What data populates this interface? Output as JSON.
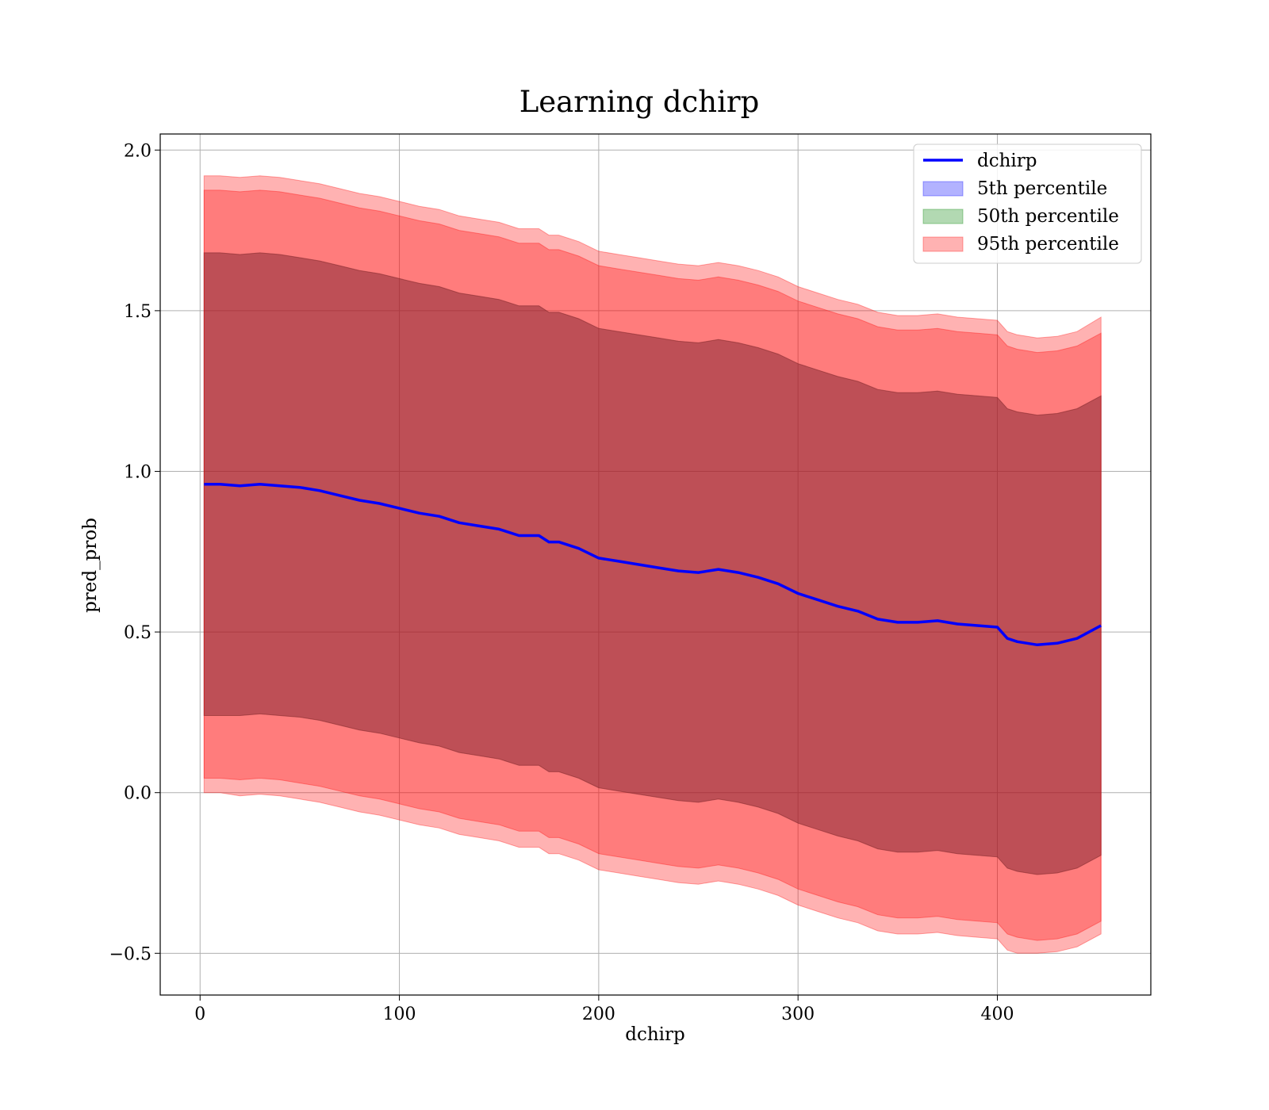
{
  "chart_data": {
    "type": "line",
    "title": "Learning dchirp",
    "xlabel": "dchirp",
    "ylabel": "pred_prob",
    "xlim": [
      -20,
      477
    ],
    "ylim": [
      -0.63,
      2.05
    ],
    "xticks": [
      0,
      100,
      200,
      300,
      400
    ],
    "xtick_labels": [
      "0",
      "100",
      "200",
      "300",
      "400"
    ],
    "yticks": [
      -0.5,
      0.0,
      0.5,
      1.0,
      1.5,
      2.0
    ],
    "ytick_labels": [
      "−0.5",
      "0.0",
      "0.5",
      "1.0",
      "1.5",
      "2.0"
    ],
    "grid": true,
    "legend_position": "top-right",
    "x": [
      2,
      10,
      20,
      30,
      40,
      50,
      60,
      70,
      80,
      90,
      100,
      110,
      120,
      130,
      140,
      150,
      160,
      170,
      175,
      180,
      190,
      200,
      210,
      220,
      230,
      240,
      250,
      260,
      270,
      280,
      290,
      300,
      310,
      320,
      330,
      340,
      350,
      360,
      370,
      380,
      390,
      400,
      405,
      410,
      415,
      420,
      430,
      440,
      452
    ],
    "series": [
      {
        "name": "dchirp",
        "kind": "line",
        "color": "#0000ff",
        "values": [
          0.96,
          0.96,
          0.955,
          0.96,
          0.955,
          0.95,
          0.94,
          0.925,
          0.91,
          0.9,
          0.885,
          0.87,
          0.86,
          0.84,
          0.83,
          0.82,
          0.8,
          0.8,
          0.78,
          0.78,
          0.76,
          0.73,
          0.72,
          0.71,
          0.7,
          0.69,
          0.685,
          0.695,
          0.685,
          0.67,
          0.65,
          0.62,
          0.6,
          0.58,
          0.565,
          0.54,
          0.53,
          0.53,
          0.535,
          0.525,
          0.52,
          0.515,
          0.48,
          0.47,
          0.465,
          0.46,
          0.465,
          0.48,
          0.52
        ]
      },
      {
        "name": "5th percentile",
        "kind": "band",
        "color": "#0000ff",
        "opacity": 0.3,
        "lower": [
          0.24,
          0.24,
          0.24,
          0.245,
          0.24,
          0.235,
          0.225,
          0.21,
          0.195,
          0.185,
          0.17,
          0.155,
          0.145,
          0.125,
          0.115,
          0.105,
          0.085,
          0.085,
          0.065,
          0.065,
          0.045,
          0.015,
          0.005,
          -0.005,
          -0.015,
          -0.025,
          -0.03,
          -0.02,
          -0.03,
          -0.045,
          -0.065,
          -0.095,
          -0.115,
          -0.135,
          -0.15,
          -0.175,
          -0.185,
          -0.185,
          -0.18,
          -0.19,
          -0.195,
          -0.2,
          -0.235,
          -0.245,
          -0.25,
          -0.255,
          -0.25,
          -0.235,
          -0.195
        ],
        "upper": [
          1.68,
          1.68,
          1.675,
          1.68,
          1.675,
          1.665,
          1.655,
          1.64,
          1.625,
          1.615,
          1.6,
          1.585,
          1.575,
          1.555,
          1.545,
          1.535,
          1.515,
          1.515,
          1.495,
          1.495,
          1.475,
          1.445,
          1.435,
          1.425,
          1.415,
          1.405,
          1.4,
          1.41,
          1.4,
          1.385,
          1.365,
          1.335,
          1.315,
          1.295,
          1.28,
          1.255,
          1.245,
          1.245,
          1.25,
          1.24,
          1.235,
          1.23,
          1.195,
          1.185,
          1.18,
          1.175,
          1.18,
          1.195,
          1.235
        ]
      },
      {
        "name": "50th percentile",
        "kind": "band",
        "color": "#008000",
        "opacity": 0.3,
        "lower": [
          0.24,
          0.24,
          0.24,
          0.245,
          0.24,
          0.235,
          0.225,
          0.21,
          0.195,
          0.185,
          0.17,
          0.155,
          0.145,
          0.125,
          0.115,
          0.105,
          0.085,
          0.085,
          0.065,
          0.065,
          0.045,
          0.015,
          0.005,
          -0.005,
          -0.015,
          -0.025,
          -0.03,
          -0.02,
          -0.03,
          -0.045,
          -0.065,
          -0.095,
          -0.115,
          -0.135,
          -0.15,
          -0.175,
          -0.185,
          -0.185,
          -0.18,
          -0.19,
          -0.195,
          -0.2,
          -0.235,
          -0.245,
          -0.25,
          -0.255,
          -0.25,
          -0.235,
          -0.195
        ],
        "upper": [
          1.68,
          1.68,
          1.675,
          1.68,
          1.675,
          1.665,
          1.655,
          1.64,
          1.625,
          1.615,
          1.6,
          1.585,
          1.575,
          1.555,
          1.545,
          1.535,
          1.515,
          1.515,
          1.495,
          1.495,
          1.475,
          1.445,
          1.435,
          1.425,
          1.415,
          1.405,
          1.4,
          1.41,
          1.4,
          1.385,
          1.365,
          1.335,
          1.315,
          1.295,
          1.28,
          1.255,
          1.245,
          1.245,
          1.25,
          1.24,
          1.235,
          1.23,
          1.195,
          1.185,
          1.18,
          1.175,
          1.18,
          1.195,
          1.235
        ]
      },
      {
        "name": "95th percentile",
        "kind": "band",
        "color": "#ff0000",
        "opacity": 0.3,
        "lower": [
          0.045,
          0.045,
          0.04,
          0.045,
          0.04,
          0.03,
          0.02,
          0.005,
          -0.01,
          -0.02,
          -0.035,
          -0.05,
          -0.06,
          -0.08,
          -0.09,
          -0.1,
          -0.12,
          -0.12,
          -0.14,
          -0.14,
          -0.16,
          -0.19,
          -0.2,
          -0.21,
          -0.22,
          -0.23,
          -0.235,
          -0.225,
          -0.235,
          -0.25,
          -0.27,
          -0.3,
          -0.32,
          -0.34,
          -0.355,
          -0.38,
          -0.39,
          -0.39,
          -0.385,
          -0.395,
          -0.4,
          -0.405,
          -0.44,
          -0.45,
          -0.455,
          -0.46,
          -0.455,
          -0.44,
          -0.4
        ],
        "upper": [
          1.875,
          1.875,
          1.87,
          1.875,
          1.87,
          1.86,
          1.85,
          1.835,
          1.82,
          1.81,
          1.795,
          1.78,
          1.77,
          1.75,
          1.74,
          1.73,
          1.71,
          1.71,
          1.69,
          1.69,
          1.67,
          1.64,
          1.63,
          1.62,
          1.61,
          1.6,
          1.595,
          1.605,
          1.595,
          1.58,
          1.56,
          1.53,
          1.51,
          1.49,
          1.475,
          1.45,
          1.44,
          1.44,
          1.445,
          1.435,
          1.43,
          1.425,
          1.39,
          1.38,
          1.375,
          1.37,
          1.375,
          1.39,
          1.43
        ]
      }
    ],
    "extra_bands": [
      {
        "color": "#ff0000",
        "opacity": 0.3,
        "lower": [
          0.0,
          0.0,
          -0.01,
          -0.005,
          -0.01,
          -0.02,
          -0.03,
          -0.045,
          -0.06,
          -0.07,
          -0.085,
          -0.1,
          -0.11,
          -0.13,
          -0.14,
          -0.15,
          -0.17,
          -0.17,
          -0.19,
          -0.19,
          -0.21,
          -0.24,
          -0.25,
          -0.26,
          -0.27,
          -0.28,
          -0.285,
          -0.275,
          -0.285,
          -0.3,
          -0.32,
          -0.35,
          -0.37,
          -0.39,
          -0.405,
          -0.43,
          -0.44,
          -0.44,
          -0.435,
          -0.445,
          -0.45,
          -0.455,
          -0.49,
          -0.5,
          -0.5,
          -0.5,
          -0.495,
          -0.48,
          -0.44
        ],
        "upper": [
          1.92,
          1.92,
          1.915,
          1.92,
          1.915,
          1.905,
          1.895,
          1.88,
          1.865,
          1.855,
          1.84,
          1.825,
          1.815,
          1.795,
          1.785,
          1.775,
          1.755,
          1.755,
          1.735,
          1.735,
          1.715,
          1.685,
          1.675,
          1.665,
          1.655,
          1.645,
          1.64,
          1.65,
          1.64,
          1.625,
          1.605,
          1.575,
          1.555,
          1.535,
          1.52,
          1.495,
          1.485,
          1.485,
          1.49,
          1.48,
          1.475,
          1.47,
          1.435,
          1.425,
          1.42,
          1.415,
          1.42,
          1.435,
          1.48
        ]
      }
    ]
  }
}
